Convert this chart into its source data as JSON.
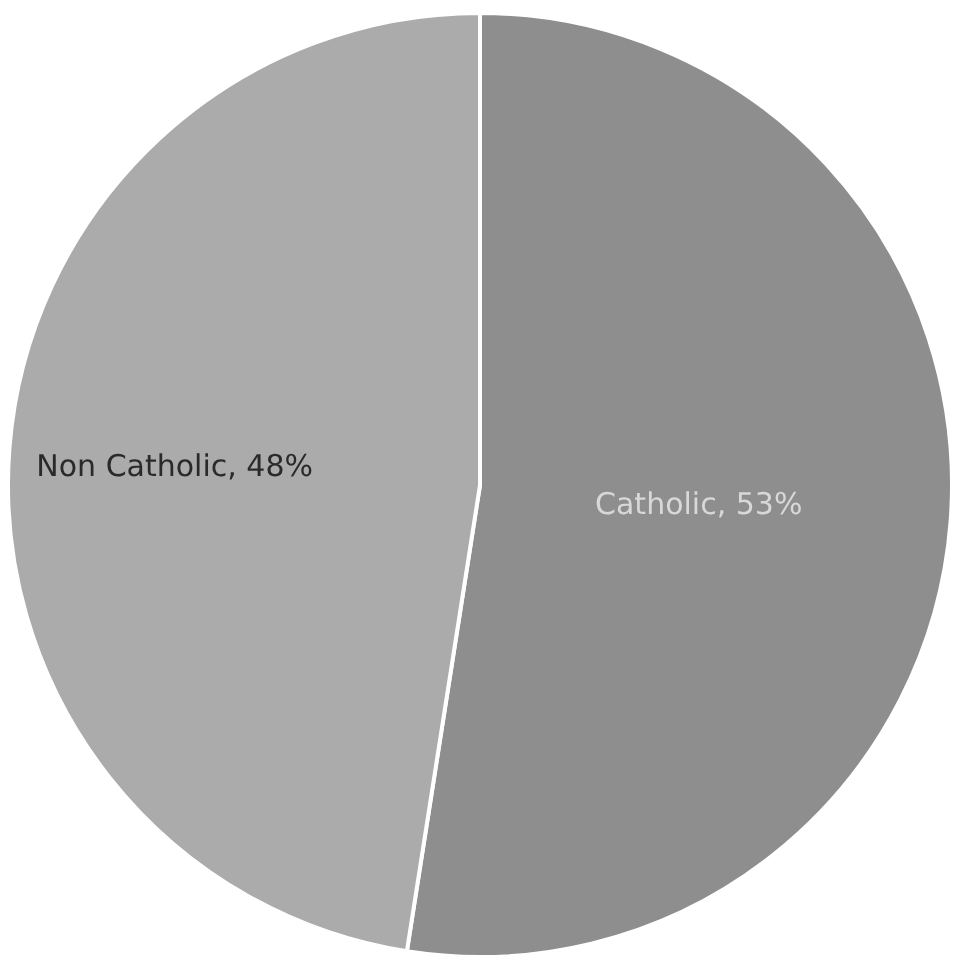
{
  "chart_data": {
    "type": "pie",
    "categories": [
      "Catholic",
      "Non Catholic"
    ],
    "values": [
      53,
      48
    ],
    "colors": [
      "#8e8e8e",
      "#ababab"
    ],
    "value_labels": [
      ", 53%",
      ", 48%"
    ]
  }
}
